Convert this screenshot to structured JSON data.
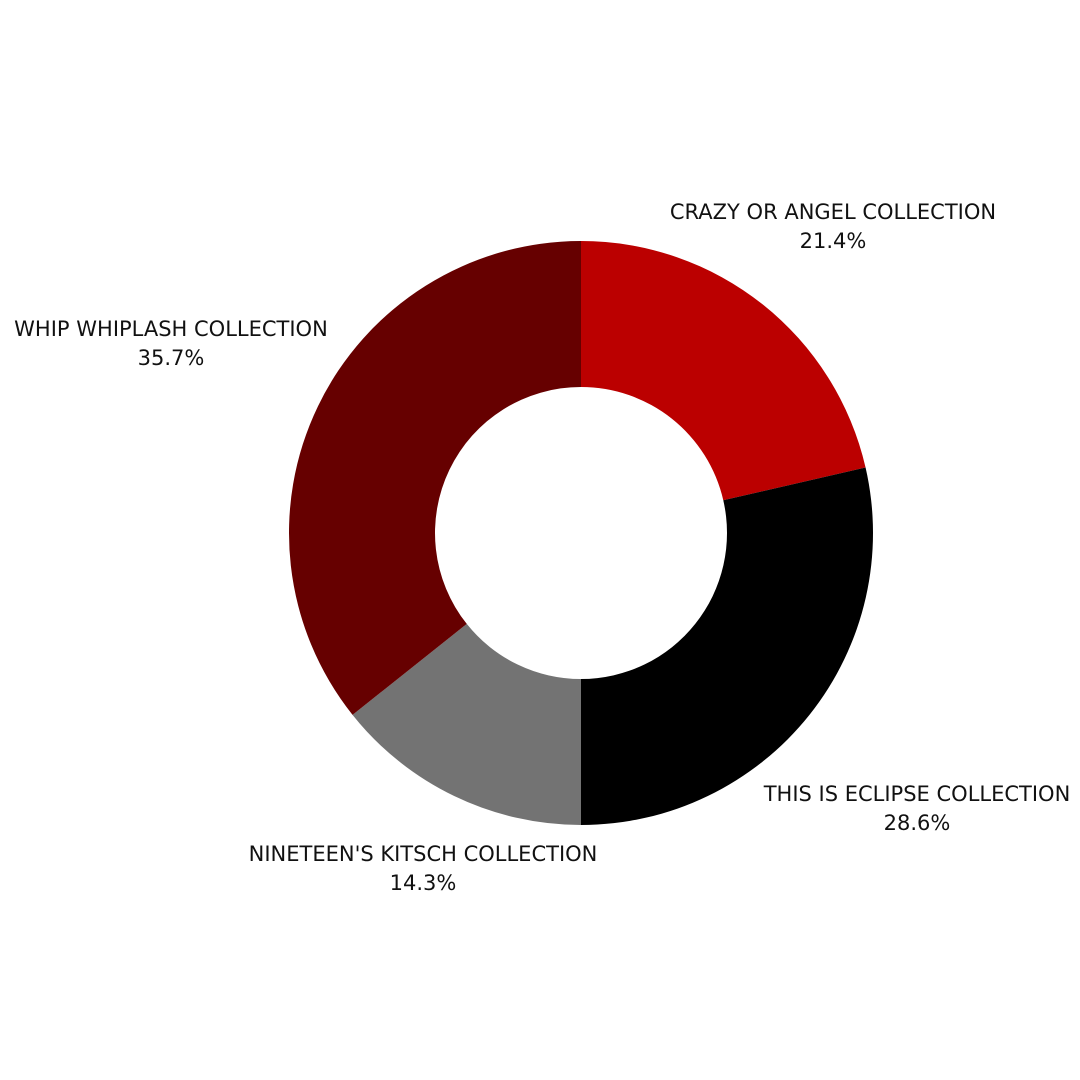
{
  "chart_data": {
    "type": "pie",
    "subtype": "donut",
    "title": "",
    "start_angle_deg": 0,
    "direction": "clockwise",
    "slices": [
      {
        "label": "CRAZY OR ANGEL COLLECTION",
        "value": 21.4,
        "display": "21.4%",
        "color": "#bb0000"
      },
      {
        "label": "THIS IS ECLIPSE COLLECTION",
        "value": 28.6,
        "display": "28.6%",
        "color": "#000000"
      },
      {
        "label": "NINETEEN'S KITSCH COLLECTION",
        "value": 14.3,
        "display": "14.3%",
        "color": "#737373"
      },
      {
        "label": "WHIP WHIPLASH COLLECTION",
        "value": 35.7,
        "display": "35.7%",
        "color": "#660000"
      }
    ],
    "legend": "none",
    "labels": "outside"
  }
}
